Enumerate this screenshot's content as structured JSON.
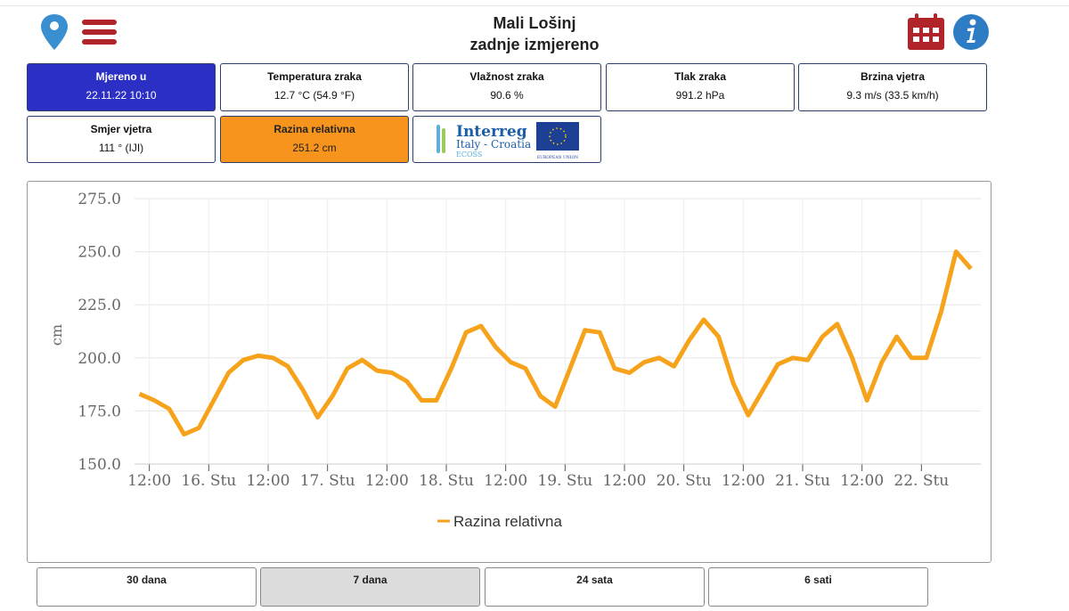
{
  "header": {
    "title": "Mali Lošinj",
    "subtitle": "zadnje izmjereno"
  },
  "cards": [
    {
      "label": "Mjereno u",
      "value": "22.11.22 10:10"
    },
    {
      "label": "Temperatura zraka",
      "value": "12.7 °C (54.9 °F)"
    },
    {
      "label": "Vlažnost zraka",
      "value": "90.6 %"
    },
    {
      "label": "Tlak zraka",
      "value": "991.2 hPa"
    },
    {
      "label": "Brzina vjetra",
      "value": "9.3 m/s (33.5 km/h)"
    },
    {
      "label": "Smjer vjetra",
      "value": "111 ° (IJI)"
    },
    {
      "label": "Razina relativna",
      "value": "251.2 cm"
    }
  ],
  "logo": {
    "name": "Interreg",
    "program": "Italy - Croatia",
    "project": "ECOSS",
    "flag": "EUROPEAN UNION"
  },
  "buttons": [
    "30 dana",
    "7 dana",
    "24 sata",
    "6 sati"
  ],
  "chart_data": {
    "type": "line",
    "y_label": "cm",
    "grid": true,
    "xlim": [
      "15. Stu 09:00",
      "22. Stu 12:00"
    ],
    "xticks": [
      {
        "value": "15. Stu 12:00",
        "label": "12:00"
      },
      {
        "value": "16. Stu 00:00",
        "label": "16. Stu"
      },
      {
        "value": "16. Stu 12:00",
        "label": "12:00"
      },
      {
        "value": "17. Stu 00:00",
        "label": "17. Stu"
      },
      {
        "value": "17. Stu 12:00",
        "label": "12:00"
      },
      {
        "value": "18. Stu 00:00",
        "label": "18. Stu"
      },
      {
        "value": "18. Stu 12:00",
        "label": "12:00"
      },
      {
        "value": "19. Stu 00:00",
        "label": "19. Stu"
      },
      {
        "value": "19. Stu 12:00",
        "label": "12:00"
      },
      {
        "value": "20. Stu 00:00",
        "label": "20. Stu"
      },
      {
        "value": "20. Stu 12:00",
        "label": "12:00"
      },
      {
        "value": "21. Stu 00:00",
        "label": "21. Stu"
      },
      {
        "value": "21. Stu 12:00",
        "label": "12:00"
      },
      {
        "value": "22. Stu 00:00",
        "label": "22. Stu"
      }
    ],
    "ylim": [
      150,
      275
    ],
    "yticks": [
      {
        "value": 150,
        "label": "150.0"
      },
      {
        "value": 175,
        "label": "175.0"
      },
      {
        "value": 200,
        "label": "200.0"
      },
      {
        "value": 225,
        "label": "225.0"
      },
      {
        "value": 250,
        "label": "250.0"
      },
      {
        "value": 275,
        "label": "275.0"
      }
    ],
    "x": [
      "15. Stu 10:00",
      "15. Stu 13:00",
      "15. Stu 16:00",
      "15. Stu 19:00",
      "15. Stu 22:00",
      "16. Stu 01:00",
      "16. Stu 04:00",
      "16. Stu 07:00",
      "16. Stu 10:00",
      "16. Stu 13:00",
      "16. Stu 16:00",
      "16. Stu 19:00",
      "16. Stu 22:00",
      "17. Stu 01:00",
      "17. Stu 04:00",
      "17. Stu 07:00",
      "17. Stu 10:00",
      "17. Stu 13:00",
      "17. Stu 16:00",
      "17. Stu 19:00",
      "17. Stu 22:00",
      "18. Stu 01:00",
      "18. Stu 04:00",
      "18. Stu 07:00",
      "18. Stu 10:00",
      "18. Stu 13:00",
      "18. Stu 16:00",
      "18. Stu 19:00",
      "18. Stu 22:00",
      "19. Stu 01:00",
      "19. Stu 04:00",
      "19. Stu 07:00",
      "19. Stu 10:00",
      "19. Stu 13:00",
      "19. Stu 16:00",
      "19. Stu 19:00",
      "19. Stu 22:00",
      "20. Stu 01:00",
      "20. Stu 04:00",
      "20. Stu 07:00",
      "20. Stu 10:00",
      "20. Stu 13:00",
      "20. Stu 16:00",
      "20. Stu 19:00",
      "20. Stu 22:00",
      "21. Stu 01:00",
      "21. Stu 04:00",
      "21. Stu 07:00",
      "21. Stu 10:00",
      "21. Stu 13:00",
      "21. Stu 16:00",
      "21. Stu 19:00",
      "21. Stu 22:00",
      "22. Stu 01:00",
      "22. Stu 04:00",
      "22. Stu 07:00",
      "22. Stu 10:00"
    ],
    "series": [
      {
        "name": "Razina relativna",
        "color": "#f7a21b",
        "values": [
          183,
          180,
          176,
          164,
          167,
          180,
          193,
          199,
          201,
          200,
          196,
          185,
          172,
          182,
          195,
          199,
          194,
          193,
          189,
          180,
          180,
          195,
          212,
          215,
          205,
          198,
          195,
          182,
          177,
          195,
          213,
          212,
          195,
          193,
          198,
          200,
          196,
          208,
          218,
          210,
          188,
          173,
          185,
          197,
          200,
          199,
          210,
          216,
          200,
          180,
          198,
          210,
          200,
          200,
          222,
          250,
          242
        ]
      }
    ]
  }
}
